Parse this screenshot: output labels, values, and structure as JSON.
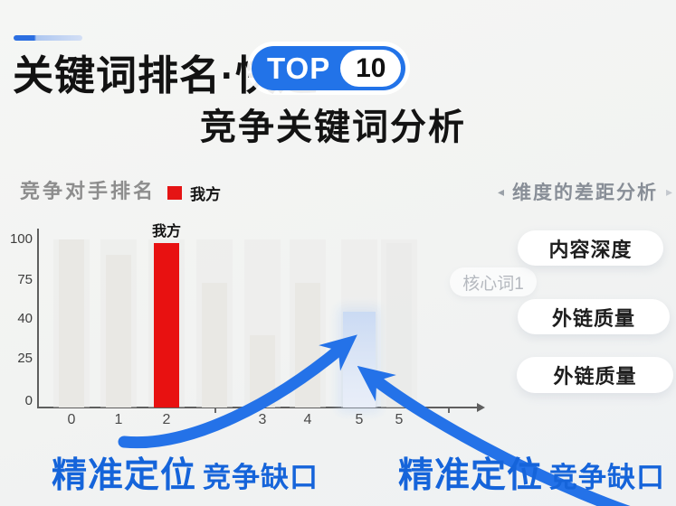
{
  "header": {
    "title_main": "关键词排名",
    "title_sep": "·",
    "title_suffix": "快速",
    "badge": {
      "label": "TOP",
      "number": "10",
      "badge_color": "#2273e8"
    },
    "subtitle": "竞争关键词分析",
    "accent_color": "#2c6fe1"
  },
  "chart": {
    "title": "竞争对手排名",
    "legend_label": "我方",
    "legend_color": "#e51414",
    "bar_annotation": "我方"
  },
  "chart_data": {
    "type": "bar",
    "title": "竞争对手排名",
    "categories": [
      "0",
      "1",
      "2",
      "",
      "3",
      "4",
      "5",
      "5"
    ],
    "values": [
      100,
      91,
      98,
      74,
      43,
      74,
      57,
      98
    ],
    "bar_styles": [
      "gray",
      "gray",
      "red",
      "gray",
      "gray",
      "gray",
      "blue",
      "ghost"
    ],
    "series_name": "我方",
    "highlight_index": 2,
    "annotated_bar": {
      "index": 2,
      "label": "我方"
    },
    "y_tick_labels": [
      "100",
      "75",
      "40",
      "25",
      "0"
    ],
    "ylim": [
      0,
      100
    ],
    "grid": false,
    "legend_position": "top",
    "bar_color_map": {
      "gray": "#e9e8e4",
      "red": "#e81111",
      "blue": "#d5e2f6",
      "ghost": "#e7e8e7"
    }
  },
  "panel": {
    "left_arrow": "◂",
    "right_arrow": "▸",
    "header": "维度的差距分析",
    "items": [
      {
        "label": "内容深度",
        "style": "normal"
      },
      {
        "label": "核心词1",
        "style": "faded"
      },
      {
        "label": "外链质量",
        "style": "normal"
      },
      {
        "label": "外链质量",
        "style": "normal"
      }
    ]
  },
  "callouts": {
    "left": {
      "strong": "精准定位",
      "rest": "竞争缺口"
    },
    "right": {
      "strong": "精准定位",
      "rest": "竞争缺口"
    },
    "color": "#1564da"
  },
  "arrows": {
    "color": "#2472e8"
  }
}
